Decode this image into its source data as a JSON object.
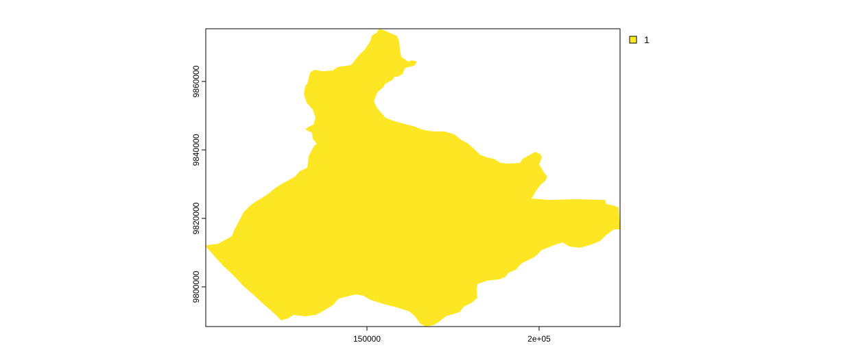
{
  "map": {
    "fill_color": "#FDE725",
    "legend": {
      "entries": [
        {
          "label": "1",
          "color": "#FDE725"
        }
      ]
    },
    "x_ticks": [
      {
        "value": 150000,
        "label": "150000"
      },
      {
        "value": 200000,
        "label": "2e+05"
      }
    ],
    "y_ticks": [
      {
        "value": 9860000,
        "label": "9860000"
      },
      {
        "value": 9840000,
        "label": "9840000"
      },
      {
        "value": 9820000,
        "label": "9820000"
      },
      {
        "value": 9800000,
        "label": "9800000"
      }
    ]
  }
}
